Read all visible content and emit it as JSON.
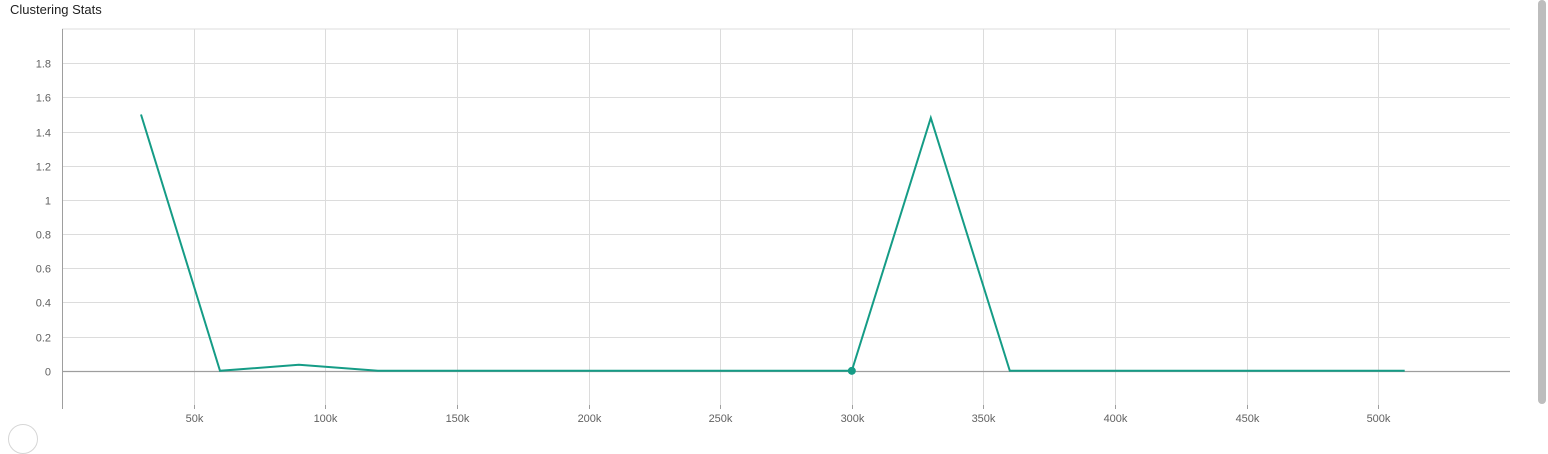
{
  "panel": {
    "title": "Clustering Stats"
  },
  "colors": {
    "series": "#159c86",
    "grid": "#dcdcdc",
    "axis": "#9e9e9e",
    "tick_text": "#616161"
  },
  "chart_data": {
    "type": "line",
    "title": "",
    "xlabel": "",
    "ylabel": "",
    "xlim": [
      0,
      550000
    ],
    "ylim": [
      -0.2,
      2.0
    ],
    "grid": true,
    "x_ticks": [
      50000,
      100000,
      150000,
      200000,
      250000,
      300000,
      350000,
      400000,
      450000,
      500000
    ],
    "x_tick_labels": [
      "50k",
      "100k",
      "150k",
      "200k",
      "250k",
      "300k",
      "350k",
      "400k",
      "450k",
      "500k"
    ],
    "y_ticks": [
      0,
      0.2,
      0.4,
      0.6,
      0.8,
      1,
      1.2,
      1.4,
      1.6,
      1.8
    ],
    "y_tick_labels": [
      "0",
      "0.2",
      "0.4",
      "0.6",
      "0.8",
      "1",
      "1.2",
      "1.4",
      "1.6",
      "1.8"
    ],
    "series": [
      {
        "x": [
          30000,
          60000,
          90000,
          120000,
          150000,
          180000,
          210000,
          240000,
          270000,
          300000,
          330000,
          360000,
          390000,
          420000,
          450000,
          480000,
          510000
        ],
        "y": [
          1.5,
          0,
          0.035,
          0,
          0,
          0,
          0,
          0,
          0,
          0,
          1.48,
          0,
          0,
          0,
          0,
          0,
          0
        ],
        "highlight_point": {
          "x": 300000,
          "y": 0
        }
      }
    ]
  }
}
